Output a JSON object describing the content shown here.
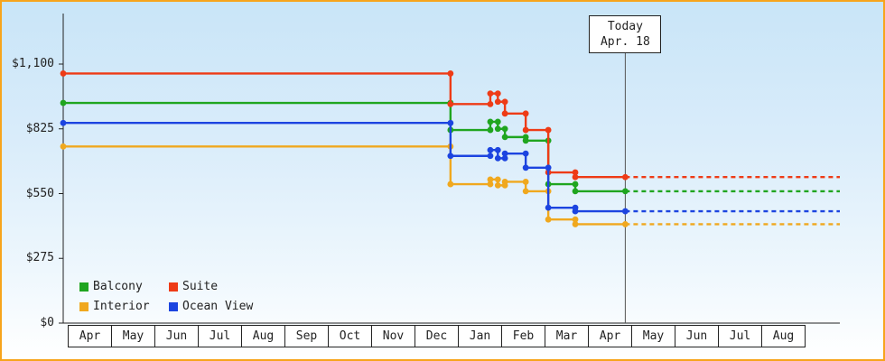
{
  "chart_data": {
    "type": "line",
    "subtype": "step-price-history",
    "title": "",
    "xlabel": "",
    "ylabel": "",
    "grid": false,
    "legend_position": "bottom-left",
    "months": [
      "Apr",
      "May",
      "Jun",
      "Jul",
      "Aug",
      "Sep",
      "Oct",
      "Nov",
      "Dec",
      "Jan",
      "Feb",
      "Mar",
      "Apr",
      "May",
      "Jun",
      "Jul",
      "Aug"
    ],
    "y_ticks": [
      {
        "label": "$0",
        "value": 0
      },
      {
        "label": "$275",
        "value": 275
      },
      {
        "label": "$550",
        "value": 550
      },
      {
        "label": "$825",
        "value": 825
      },
      {
        "label": "$1,100",
        "value": 1100
      }
    ],
    "ylim": [
      0,
      1315
    ],
    "today": {
      "label_line1": "Today",
      "label_line2": "Apr. 18",
      "x_month": 12.6
    },
    "projection_after_today": "dashed",
    "series": [
      {
        "name": "Balcony",
        "color": "#1fa51f",
        "points": [
          [
            0,
            935
          ],
          [
            8.65,
            935
          ],
          [
            8.65,
            820
          ],
          [
            9.55,
            820
          ],
          [
            9.55,
            855
          ],
          [
            9.72,
            855
          ],
          [
            9.72,
            825
          ],
          [
            9.88,
            825
          ],
          [
            9.88,
            790
          ],
          [
            10.35,
            790
          ],
          [
            10.35,
            775
          ],
          [
            10.86,
            775
          ],
          [
            10.86,
            590
          ],
          [
            11.47,
            590
          ],
          [
            11.47,
            560
          ],
          [
            12.6,
            560
          ]
        ]
      },
      {
        "name": "Suite",
        "color": "#ee3b16",
        "points": [
          [
            0,
            1060
          ],
          [
            8.65,
            1060
          ],
          [
            8.65,
            930
          ],
          [
            9.55,
            930
          ],
          [
            9.55,
            975
          ],
          [
            9.72,
            975
          ],
          [
            9.72,
            940
          ],
          [
            9.88,
            940
          ],
          [
            9.88,
            890
          ],
          [
            10.35,
            890
          ],
          [
            10.35,
            820
          ],
          [
            10.86,
            820
          ],
          [
            10.86,
            640
          ],
          [
            11.47,
            640
          ],
          [
            11.47,
            620
          ],
          [
            12.6,
            620
          ]
        ]
      },
      {
        "name": "Interior",
        "color": "#f0a81e",
        "points": [
          [
            0,
            750
          ],
          [
            8.65,
            750
          ],
          [
            8.65,
            590
          ],
          [
            9.55,
            590
          ],
          [
            9.55,
            610
          ],
          [
            9.72,
            610
          ],
          [
            9.72,
            585
          ],
          [
            9.88,
            585
          ],
          [
            9.88,
            600
          ],
          [
            10.35,
            600
          ],
          [
            10.35,
            560
          ],
          [
            10.86,
            560
          ],
          [
            10.86,
            440
          ],
          [
            11.47,
            440
          ],
          [
            11.47,
            420
          ],
          [
            12.6,
            420
          ]
        ]
      },
      {
        "name": "Ocean View",
        "color": "#1c44e0",
        "points": [
          [
            0,
            850
          ],
          [
            8.65,
            850
          ],
          [
            8.65,
            710
          ],
          [
            9.55,
            710
          ],
          [
            9.55,
            735
          ],
          [
            9.72,
            735
          ],
          [
            9.72,
            700
          ],
          [
            9.88,
            700
          ],
          [
            9.88,
            720
          ],
          [
            10.35,
            720
          ],
          [
            10.35,
            660
          ],
          [
            10.86,
            660
          ],
          [
            10.86,
            490
          ],
          [
            11.47,
            490
          ],
          [
            11.47,
            475
          ],
          [
            12.6,
            475
          ]
        ]
      }
    ]
  }
}
